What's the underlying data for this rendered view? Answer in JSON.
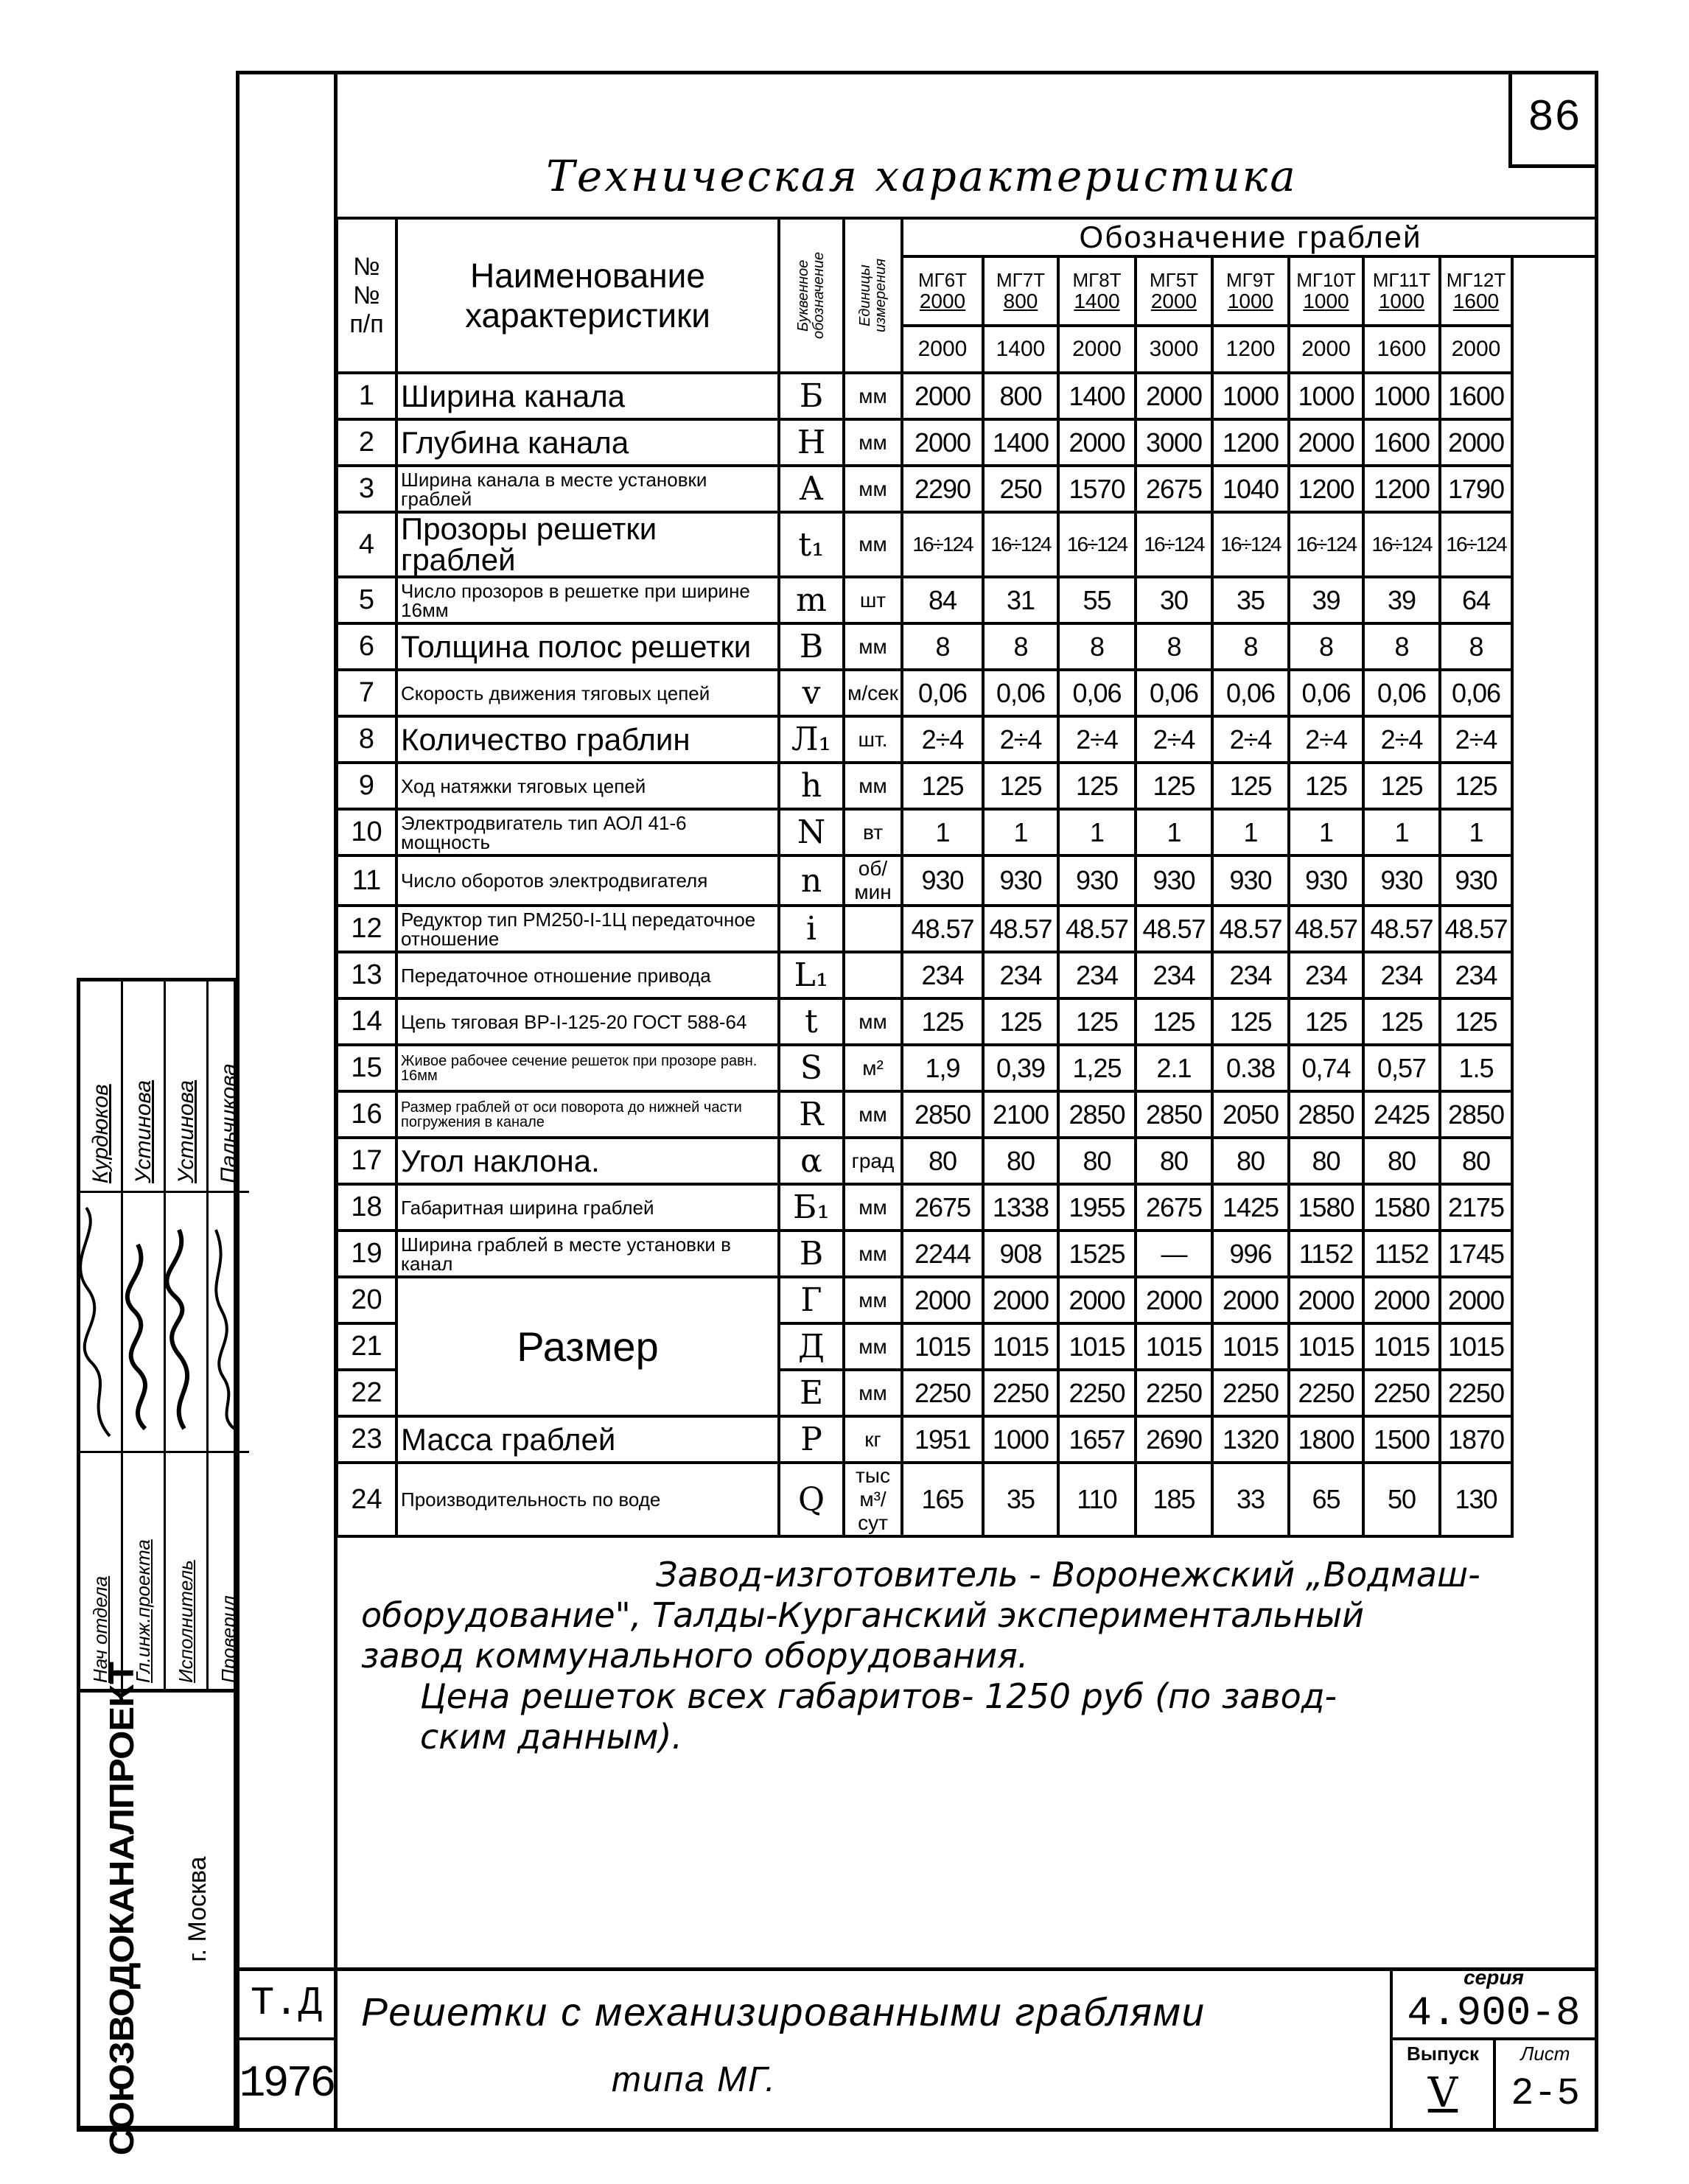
{
  "sheet_number": "86",
  "title": "Техническая характеристика",
  "table": {
    "headers": {
      "no": "№№ п/п",
      "name": "Наименование характеристики",
      "letter": "Буквенное обозначение",
      "unit": "Единицы измерения",
      "group": "Обозначение граблей"
    },
    "models": [
      {
        "name": "МГ6Т",
        "num": "2000",
        "den": "2000"
      },
      {
        "name": "МГ7Т",
        "num": "800",
        "den": "1400"
      },
      {
        "name": "МГ8Т",
        "num": "1400",
        "den": "2000"
      },
      {
        "name": "МГ5Т",
        "num": "2000",
        "den": "3000"
      },
      {
        "name": "МГ9Т",
        "num": "1000",
        "den": "1200"
      },
      {
        "name": "МГ10Т",
        "num": "1000",
        "den": "2000"
      },
      {
        "name": "МГ11Т",
        "num": "1000",
        "den": "1600"
      },
      {
        "name": "МГ12Т",
        "num": "1600",
        "den": "2000"
      }
    ],
    "rows": [
      {
        "no": "1",
        "name": "Ширина канала",
        "letter": "Б",
        "unit": "мм",
        "values": [
          "2000",
          "800",
          "1400",
          "2000",
          "1000",
          "1000",
          "1000",
          "1600"
        ]
      },
      {
        "no": "2",
        "name": "Глубина канала",
        "letter": "Н",
        "unit": "мм",
        "values": [
          "2000",
          "1400",
          "2000",
          "3000",
          "1200",
          "2000",
          "1600",
          "2000"
        ]
      },
      {
        "no": "3",
        "name": "Ширина канала в месте установки граблей",
        "letter": "А",
        "unit": "мм",
        "values": [
          "2290",
          "250",
          "1570",
          "2675",
          "1040",
          "1200",
          "1200",
          "1790"
        ]
      },
      {
        "no": "4",
        "name": "Прозоры решетки граблей",
        "letter": "t₁",
        "unit": "мм",
        "values": [
          "16÷124",
          "16÷124",
          "16÷124",
          "16÷124",
          "16÷124",
          "16÷124",
          "16÷124",
          "16÷124"
        ]
      },
      {
        "no": "5",
        "name": "Число прозоров в решетке при ширине 16мм",
        "letter": "m",
        "unit": "шт",
        "values": [
          "84",
          "31",
          "55",
          "30",
          "35",
          "39",
          "39",
          "64"
        ]
      },
      {
        "no": "6",
        "name": "Толщина полос решетки",
        "letter": "В",
        "unit": "мм",
        "values": [
          "8",
          "8",
          "8",
          "8",
          "8",
          "8",
          "8",
          "8"
        ]
      },
      {
        "no": "7",
        "name": "Скорость движения тяговых цепей",
        "letter": "v",
        "unit": "м/сек",
        "values": [
          "0,06",
          "0,06",
          "0,06",
          "0,06",
          "0,06",
          "0,06",
          "0,06",
          "0,06"
        ]
      },
      {
        "no": "8",
        "name": "Количество граблин",
        "letter": "Л₁",
        "unit": "шт.",
        "values": [
          "2÷4",
          "2÷4",
          "2÷4",
          "2÷4",
          "2÷4",
          "2÷4",
          "2÷4",
          "2÷4"
        ]
      },
      {
        "no": "9",
        "name": "Ход натяжки тяговых цепей",
        "letter": "h",
        "unit": "мм",
        "values": [
          "125",
          "125",
          "125",
          "125",
          "125",
          "125",
          "125",
          "125"
        ]
      },
      {
        "no": "10",
        "name": "Электродвигатель тип АОЛ 41-6 мощность",
        "letter": "N",
        "unit": "вт",
        "values": [
          "1",
          "1",
          "1",
          "1",
          "1",
          "1",
          "1",
          "1"
        ]
      },
      {
        "no": "11",
        "name": "Число оборотов электродвигателя",
        "letter": "n",
        "unit": "об/мин",
        "values": [
          "930",
          "930",
          "930",
          "930",
          "930",
          "930",
          "930",
          "930"
        ]
      },
      {
        "no": "12",
        "name": "Редуктор тип РМ250-I-1Ц передаточное отношение",
        "letter": "i",
        "unit": "",
        "values": [
          "48.57",
          "48.57",
          "48.57",
          "48.57",
          "48.57",
          "48.57",
          "48.57",
          "48.57"
        ]
      },
      {
        "no": "13",
        "name": "Передаточное отношение привода",
        "letter": "L₁",
        "unit": "",
        "values": [
          "234",
          "234",
          "234",
          "234",
          "234",
          "234",
          "234",
          "234"
        ]
      },
      {
        "no": "14",
        "name": "Цепь тяговая ВР-I-125-20 ГОСТ 588-64",
        "letter": "t",
        "unit": "мм",
        "values": [
          "125",
          "125",
          "125",
          "125",
          "125",
          "125",
          "125",
          "125"
        ]
      },
      {
        "no": "15",
        "name": "Живое рабочее сечение решеток при прозоре равн. 16мм",
        "letter": "S",
        "unit": "м²",
        "values": [
          "1,9",
          "0,39",
          "1,25",
          "2.1",
          "0.38",
          "0,74",
          "0,57",
          "1.5"
        ]
      },
      {
        "no": "16",
        "name": "Размер граблей от оси поворота до нижней части погружения в канале",
        "letter": "R",
        "unit": "мм",
        "values": [
          "2850",
          "2100",
          "2850",
          "2850",
          "2050",
          "2850",
          "2425",
          "2850"
        ]
      },
      {
        "no": "17",
        "name": "Угол наклона.",
        "letter": "α",
        "unit": "град",
        "values": [
          "80",
          "80",
          "80",
          "80",
          "80",
          "80",
          "80",
          "80"
        ]
      },
      {
        "no": "18",
        "name": "Габаритная ширина граблей",
        "letter": "Б₁",
        "unit": "мм",
        "values": [
          "2675",
          "1338",
          "1955",
          "2675",
          "1425",
          "1580",
          "1580",
          "2175"
        ]
      },
      {
        "no": "19",
        "name": "Ширина граблей в месте установки в канал",
        "letter": "В",
        "unit": "мм",
        "values": [
          "2244",
          "908",
          "1525",
          "—",
          "996",
          "1152",
          "1152",
          "1745"
        ]
      },
      {
        "no": "20",
        "name": "Размер",
        "letter": "Г",
        "unit": "мм",
        "values": [
          "2000",
          "2000",
          "2000",
          "2000",
          "2000",
          "2000",
          "2000",
          "2000"
        ]
      },
      {
        "no": "21",
        "name": "",
        "letter": "Д",
        "unit": "мм",
        "values": [
          "1015",
          "1015",
          "1015",
          "1015",
          "1015",
          "1015",
          "1015",
          "1015"
        ]
      },
      {
        "no": "22",
        "name": "",
        "letter": "Е",
        "unit": "мм",
        "values": [
          "2250",
          "2250",
          "2250",
          "2250",
          "2250",
          "2250",
          "2250",
          "2250"
        ]
      },
      {
        "no": "23",
        "name": "Масса граблей",
        "letter": "Р",
        "unit": "кг",
        "values": [
          "1951",
          "1000",
          "1657",
          "2690",
          "1320",
          "1800",
          "1500",
          "1870"
        ]
      },
      {
        "no": "24",
        "name": "Производительность по воде",
        "letter": "Q",
        "unit": "тыс м³/сут",
        "values": [
          "165",
          "35",
          "110",
          "185",
          "33",
          "65",
          "50",
          "130"
        ]
      }
    ]
  },
  "notes": {
    "line1": "Завод-изготовитель - Воронежский „Водмаш-",
    "line2": "оборудование\", Талды-Курганский экспериментальный",
    "line3": "завод коммунального оборудования.",
    "line4": "Цена решеток всех габаритов- 1250 руб (по завод-",
    "line5": "ским данным)."
  },
  "stamp": {
    "organization": "СОЮЗВОДОКАНАЛПРОЕКТ",
    "city": "г. Москва",
    "signatures": [
      {
        "role": "Нач отдела",
        "name": "Курдюков"
      },
      {
        "role": "Гл.инж.проекта",
        "name": "Устинова"
      },
      {
        "role": "Исполнитель",
        "name": "Устинова"
      },
      {
        "role": "Проверил",
        "name": "Пальчикова"
      }
    ]
  },
  "title_block": {
    "code": "Т.Д",
    "year": "1976",
    "title_line1": "Решетки с механизированными граблями",
    "title_line2": "типа МГ.",
    "series_label": "серия",
    "series": "4.900-8",
    "issue_label": "Выпуск",
    "issue": "V",
    "sheet_label": "Лист",
    "sheet": "2-5"
  }
}
